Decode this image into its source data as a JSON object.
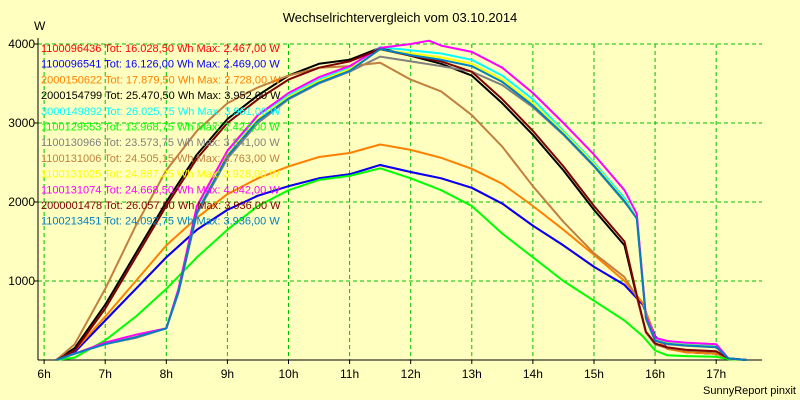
{
  "chart_data": {
    "type": "line",
    "title": "Wechselrichtervergleich vom 03.10.2014",
    "ylabel": "W",
    "xlabel": "",
    "ylim": [
      0,
      4000
    ],
    "xlim": [
      5.9,
      17.75
    ],
    "y_ticks": [
      1000,
      2000,
      3000,
      4000
    ],
    "y_tick_labels": [
      "1000",
      "2000",
      "3000",
      "4000"
    ],
    "x_ticks": [
      6,
      7,
      8,
      9,
      10,
      11,
      12,
      13,
      14,
      15,
      16,
      17
    ],
    "x_tick_labels": [
      "6h",
      "7h",
      "8h",
      "9h",
      "10h",
      "11h",
      "12h",
      "13h",
      "14h",
      "15h",
      "16h",
      "17h"
    ],
    "grid": true,
    "legend_position": "top-left",
    "footer": "SunnyReport pinxit",
    "series": [
      {
        "name": "1100096436",
        "label": "1100096436 Tot: 16.028,50 Wh Max: 2.467,00 W",
        "color": "#ff0000",
        "x": [
          6.2,
          6.5,
          7,
          7.5,
          8,
          8.5,
          9,
          9.5,
          10,
          10.5,
          11,
          11.5,
          12,
          12.5,
          13,
          13.5,
          14,
          14.5,
          15,
          15.5,
          15.8,
          16,
          16.2,
          16.5,
          17,
          17.2,
          17.5
        ],
        "y": [
          0,
          100,
          500,
          900,
          1300,
          1650,
          1900,
          2080,
          2200,
          2300,
          2350,
          2467,
          2380,
          2300,
          2180,
          1980,
          1700,
          1450,
          1180,
          950,
          700,
          300,
          150,
          100,
          80,
          20,
          0
        ]
      },
      {
        "name": "1100096541",
        "label": "1100096541 Tot: 16.126,00 Wh Max: 2.469,00 W",
        "color": "#0000ff",
        "x": [
          6.2,
          6.5,
          7,
          7.5,
          8,
          8.5,
          9,
          9.5,
          10,
          10.5,
          11,
          11.5,
          12,
          12.5,
          13,
          13.5,
          14,
          14.5,
          15,
          15.5,
          15.8,
          16,
          16.2,
          16.5,
          17,
          17.2,
          17.5
        ],
        "y": [
          0,
          100,
          500,
          900,
          1300,
          1650,
          1900,
          2080,
          2200,
          2300,
          2350,
          2469,
          2380,
          2300,
          2180,
          1980,
          1700,
          1450,
          1180,
          950,
          700,
          300,
          150,
          100,
          80,
          20,
          0
        ]
      },
      {
        "name": "2000150622",
        "label": "2000150622 Tot: 17.879,50 Wh Max: 2.728,00 W",
        "color": "#ff8000",
        "x": [
          6.2,
          6.5,
          7,
          7.5,
          8,
          8.5,
          9,
          9.5,
          10,
          10.5,
          11,
          11.5,
          12,
          12.5,
          13,
          13.5,
          14,
          14.5,
          15,
          15.5,
          15.8,
          16,
          16.2,
          16.5,
          17,
          17.2,
          17.5
        ],
        "y": [
          0,
          120,
          550,
          1000,
          1450,
          1800,
          2100,
          2300,
          2450,
          2570,
          2620,
          2728,
          2660,
          2560,
          2420,
          2230,
          1950,
          1650,
          1330,
          1000,
          720,
          280,
          140,
          100,
          80,
          20,
          0
        ]
      },
      {
        "name": "2000154799",
        "label": "2000154799 Tot: 25.470,50 Wh Max: 3.952,00 W",
        "color": "#000000",
        "x": [
          6.2,
          6.5,
          7,
          7.5,
          8,
          8.5,
          9,
          9.5,
          10,
          10.5,
          11,
          11.5,
          12,
          12.5,
          13,
          13.5,
          14,
          14.5,
          15,
          15.5,
          15.7,
          15.85,
          16,
          16.2,
          16.5,
          17,
          17.2,
          17.5
        ],
        "y": [
          0,
          150,
          700,
          1350,
          2000,
          2600,
          3050,
          3350,
          3600,
          3750,
          3800,
          3952,
          3850,
          3750,
          3600,
          3250,
          2850,
          2400,
          1900,
          1450,
          800,
          350,
          200,
          150,
          120,
          100,
          20,
          0
        ]
      },
      {
        "name": "3000149892",
        "label": "3000149892 Tot: 26.025,75 Wh Max: 3.961,00 W",
        "color": "#00ffff",
        "x": [
          6.2,
          6.5,
          7,
          7.5,
          8,
          8.2,
          8.5,
          9,
          9.5,
          10,
          10.5,
          11,
          11.5,
          12,
          12.5,
          13,
          13.5,
          14,
          14.5,
          15,
          15.5,
          15.7,
          15.85,
          16,
          16.2,
          16.5,
          17,
          17.2,
          17.5
        ],
        "y": [
          0,
          80,
          200,
          300,
          400,
          900,
          1900,
          2600,
          3100,
          3350,
          3550,
          3700,
          3961,
          3920,
          3880,
          3800,
          3600,
          3300,
          2900,
          2500,
          2050,
          1800,
          550,
          260,
          220,
          200,
          180,
          20,
          0
        ]
      },
      {
        "name": "1100129553",
        "label": "1100129553 Tot: 13.968,75 Wh Max: 2.427,00 W",
        "color": "#00ff00",
        "x": [
          6.2,
          6.5,
          7,
          7.5,
          8,
          8.5,
          9,
          9.5,
          10,
          10.5,
          11,
          11.5,
          12,
          12.5,
          13,
          13.5,
          14,
          14.5,
          15,
          15.5,
          15.8,
          16,
          16.2,
          16.5,
          17,
          17.2,
          17.5
        ],
        "y": [
          0,
          30,
          250,
          550,
          900,
          1300,
          1650,
          1950,
          2150,
          2280,
          2330,
          2427,
          2300,
          2150,
          1950,
          1600,
          1300,
          1000,
          750,
          500,
          300,
          120,
          60,
          50,
          40,
          10,
          0
        ]
      },
      {
        "name": "1100130966",
        "label": "1100130966 Tot: 23.573,75 Wh Max: 3.841,00 W",
        "color": "#808080",
        "x": [
          6.2,
          6.5,
          7,
          7.5,
          8,
          8.2,
          8.5,
          9,
          9.5,
          10,
          10.5,
          11,
          11.5,
          12,
          12.5,
          13,
          13.5,
          14,
          14.5,
          15,
          15.5,
          15.7,
          15.85,
          16,
          16.2,
          16.5,
          17,
          17.2,
          17.5
        ],
        "y": [
          0,
          80,
          200,
          280,
          400,
          850,
          1850,
          2550,
          3000,
          3300,
          3500,
          3650,
          3841,
          3780,
          3720,
          3650,
          3480,
          3200,
          2850,
          2450,
          2000,
          1800,
          520,
          240,
          200,
          180,
          160,
          20,
          0
        ]
      },
      {
        "name": "1100131006",
        "label": "1100131006 Tot: 24.505,15 Wh Max: 3.763,00 W",
        "color": "#c08040",
        "x": [
          6.2,
          6.5,
          7,
          7.5,
          8,
          8.5,
          9,
          9.5,
          10,
          10.5,
          11,
          11.5,
          12,
          12.5,
          13,
          13.5,
          14,
          14.5,
          15,
          15.5,
          15.7,
          15.85,
          16,
          16.2,
          16.5,
          17,
          17.2,
          17.5
        ],
        "y": [
          0,
          200,
          900,
          1700,
          2400,
          2900,
          3250,
          3450,
          3600,
          3700,
          3720,
          3763,
          3550,
          3400,
          3100,
          2700,
          2200,
          1750,
          1350,
          1050,
          800,
          350,
          200,
          150,
          120,
          100,
          20,
          0
        ]
      },
      {
        "name": "1100131025",
        "label": "1100131025 Tot: 24.887,25 Wh Max: 3.928,00 W",
        "color": "#ffff00",
        "x": [
          6.2,
          6.5,
          7,
          7.5,
          8,
          8.2,
          8.5,
          9,
          9.5,
          10,
          10.5,
          11,
          11.5,
          12,
          12.5,
          13,
          13.5,
          14,
          14.5,
          15,
          15.5,
          15.7,
          15.85,
          16,
          16.2,
          16.5,
          17,
          17.2,
          17.5
        ],
        "y": [
          0,
          80,
          200,
          300,
          400,
          880,
          1880,
          2600,
          3050,
          3330,
          3530,
          3680,
          3928,
          3880,
          3830,
          3750,
          3550,
          3250,
          2880,
          2480,
          2020,
          1800,
          540,
          250,
          210,
          190,
          170,
          20,
          0
        ]
      },
      {
        "name": "1100131074",
        "label": "1100131074 Tot: 24.668,50 Wh Max: 4.042,00 W",
        "color": "#ff00ff",
        "x": [
          6.2,
          6.5,
          7,
          7.5,
          8,
          8.2,
          8.5,
          9,
          9.5,
          10,
          10.5,
          11,
          11.5,
          12,
          12.3,
          12.5,
          13,
          13.5,
          14,
          14.5,
          15,
          15.5,
          15.7,
          15.85,
          16,
          16.2,
          16.5,
          17,
          17.2,
          17.5
        ],
        "y": [
          0,
          80,
          220,
          320,
          400,
          900,
          1950,
          2650,
          3100,
          3380,
          3580,
          3720,
          3950,
          4000,
          4042,
          3980,
          3900,
          3700,
          3380,
          3000,
          2600,
          2150,
          1850,
          560,
          280,
          240,
          220,
          200,
          20,
          0
        ]
      },
      {
        "name": "2000001478",
        "label": "2000001478 Tot: 26.057,50 Wh Max: 3.936,00 W",
        "color": "#800000",
        "x": [
          6.2,
          6.5,
          7,
          7.5,
          8,
          8.5,
          9,
          9.5,
          10,
          10.5,
          11,
          11.5,
          12,
          12.5,
          13,
          13.5,
          14,
          14.5,
          15,
          15.5,
          15.7,
          15.85,
          16,
          16.2,
          16.5,
          17,
          17.2,
          17.5
        ],
        "y": [
          0,
          120,
          650,
          1300,
          1950,
          2550,
          3000,
          3300,
          3550,
          3700,
          3780,
          3936,
          3850,
          3780,
          3650,
          3300,
          2900,
          2450,
          1950,
          1500,
          820,
          360,
          210,
          160,
          130,
          110,
          20,
          0
        ]
      },
      {
        "name": "1100213451",
        "label": "1100213451 Tot: 24.092,75 Wh Max: 3.936,00 W",
        "color": "#0080c0",
        "x": [
          6.2,
          6.5,
          7,
          7.5,
          8,
          8.2,
          8.5,
          9,
          9.5,
          10,
          10.5,
          11,
          11.5,
          12,
          12.5,
          13,
          13.5,
          14,
          14.5,
          15,
          15.5,
          15.7,
          15.85,
          16,
          16.2,
          16.5,
          17,
          17.2,
          17.5
        ],
        "y": [
          0,
          80,
          200,
          290,
          400,
          870,
          1870,
          2580,
          3030,
          3310,
          3510,
          3660,
          3936,
          3860,
          3800,
          3720,
          3520,
          3220,
          2860,
          2460,
          2010,
          1790,
          530,
          245,
          205,
          185,
          165,
          20,
          0
        ]
      }
    ]
  }
}
